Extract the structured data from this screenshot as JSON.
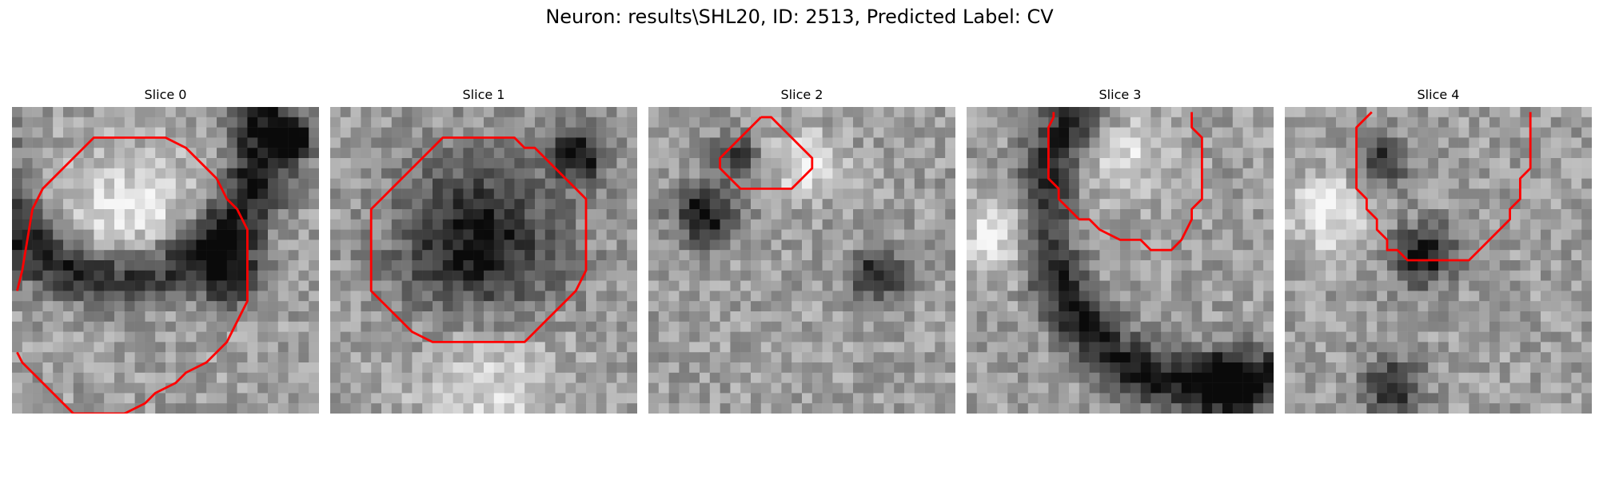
{
  "figure": {
    "suptitle": "Neuron: results\\SHL20, ID: 2513, Predicted Label: CV",
    "contour_color": "#ff0000",
    "colormap": "gray",
    "panels": [
      {
        "title": "Slice 0",
        "dark_features": [
          {
            "cx": 10,
            "cy": 2,
            "r": 14,
            "w": 3.2,
            "s": 0.55
          },
          {
            "cx": 27,
            "cy": 3,
            "r": 0,
            "w": 1.6,
            "s": 0.9
          },
          {
            "cx": 21,
            "cy": 16,
            "r": 0,
            "w": 3.0,
            "s": 0.5
          }
        ],
        "bright_features": [
          {
            "cx": 11,
            "cy": 11,
            "r": 0,
            "w": 7,
            "s": 0.3
          }
        ],
        "contour": [
          [
            0.5,
            18
          ],
          [
            1,
            16
          ],
          [
            2,
            10
          ],
          [
            3,
            8
          ],
          [
            5,
            6
          ],
          [
            8,
            3
          ],
          [
            15,
            3
          ],
          [
            17,
            4
          ],
          [
            20,
            7
          ],
          [
            21,
            9
          ],
          [
            22,
            10
          ],
          [
            23,
            12
          ],
          [
            23,
            19
          ],
          [
            22,
            21
          ],
          [
            21,
            23
          ],
          [
            19,
            25
          ],
          [
            17,
            26
          ],
          [
            16,
            27
          ],
          [
            14,
            28
          ],
          [
            13,
            29
          ],
          [
            11,
            30
          ],
          [
            6,
            30
          ],
          [
            5,
            29
          ],
          [
            4,
            28
          ],
          [
            2,
            26
          ],
          [
            1,
            25
          ],
          [
            0.5,
            24
          ]
        ]
      },
      {
        "title": "Slice 1",
        "dark_features": [
          {
            "cx": 14,
            "cy": 13,
            "r": 0,
            "w": 8,
            "s": 0.55
          },
          {
            "cx": 24,
            "cy": 4,
            "r": 0,
            "w": 3,
            "s": 0.5
          }
        ],
        "bright_features": [
          {
            "cx": 15,
            "cy": 26,
            "r": 0,
            "w": 7,
            "s": 0.25
          }
        ],
        "contour": [
          [
            6,
            8
          ],
          [
            9,
            5
          ],
          [
            10,
            4
          ],
          [
            11,
            3
          ],
          [
            18,
            3
          ],
          [
            19,
            4
          ],
          [
            20,
            4
          ],
          [
            21,
            5
          ],
          [
            23,
            7
          ],
          [
            24,
            8
          ],
          [
            25,
            9
          ],
          [
            25,
            16
          ],
          [
            24,
            18
          ],
          [
            23,
            19
          ],
          [
            22,
            20
          ],
          [
            21,
            21
          ],
          [
            20,
            22
          ],
          [
            19,
            23
          ],
          [
            10,
            23
          ],
          [
            8,
            22
          ],
          [
            7,
            21
          ],
          [
            6,
            20
          ],
          [
            5,
            19
          ],
          [
            4,
            18
          ],
          [
            4,
            10
          ],
          [
            5,
            9
          ],
          [
            6,
            8
          ]
        ]
      },
      {
        "title": "Slice 2",
        "dark_features": [
          {
            "cx": 5,
            "cy": 10,
            "r": 0,
            "w": 3,
            "s": 0.55
          },
          {
            "cx": 22,
            "cy": 16,
            "r": 0,
            "w": 2.6,
            "s": 0.5
          },
          {
            "cx": 8,
            "cy": 4,
            "r": 0,
            "w": 2,
            "s": 0.4
          }
        ],
        "bright_features": [
          {
            "cx": 15,
            "cy": 5,
            "r": 0,
            "w": 3,
            "s": 0.35
          }
        ],
        "contour": [
          [
            11,
            1
          ],
          [
            12,
            1
          ],
          [
            13,
            2
          ],
          [
            14,
            3
          ],
          [
            15,
            4
          ],
          [
            16,
            5
          ],
          [
            16,
            6
          ],
          [
            15,
            7
          ],
          [
            14,
            8
          ],
          [
            9,
            8
          ],
          [
            8,
            7
          ],
          [
            7,
            6
          ],
          [
            7,
            5
          ],
          [
            8,
            4
          ],
          [
            9,
            3
          ],
          [
            10,
            2
          ],
          [
            11,
            1
          ]
        ]
      },
      {
        "title": "Slice 3",
        "dark_features": [
          {
            "cx": 24,
            "cy": 10,
            "r": 17,
            "w": 2.8,
            "s": 0.5
          },
          {
            "cx": 25,
            "cy": 26,
            "r": 0,
            "w": 3,
            "s": 0.45
          }
        ],
        "bright_features": [
          {
            "cx": 3,
            "cy": 12,
            "r": 0,
            "w": 4,
            "s": 0.3
          },
          {
            "cx": 15,
            "cy": 4,
            "r": 0,
            "w": 4,
            "s": 0.25
          }
        ],
        "contour": [
          [
            8.5,
            0.5
          ],
          [
            8.5,
            1
          ],
          [
            8,
            2
          ],
          [
            8,
            7
          ],
          [
            9,
            8
          ],
          [
            9,
            9
          ],
          [
            10,
            10
          ],
          [
            11,
            11
          ],
          [
            12,
            11
          ],
          [
            13,
            12
          ],
          [
            15,
            13
          ],
          [
            17,
            13
          ],
          [
            18,
            14
          ],
          [
            20,
            14
          ],
          [
            21,
            13
          ],
          [
            22,
            11
          ],
          [
            22,
            10
          ],
          [
            23,
            9
          ],
          [
            23,
            3
          ],
          [
            22,
            2
          ],
          [
            22,
            0.5
          ]
        ]
      },
      {
        "title": "Slice 4",
        "dark_features": [
          {
            "cx": 13,
            "cy": 14,
            "r": 0,
            "w": 3,
            "s": 0.55
          },
          {
            "cx": 9,
            "cy": 5,
            "r": 0,
            "w": 2.5,
            "s": 0.45
          },
          {
            "cx": 10,
            "cy": 27,
            "r": 0,
            "w": 3,
            "s": 0.45
          }
        ],
        "bright_features": [
          {
            "cx": 4,
            "cy": 10,
            "r": 0,
            "w": 4,
            "s": 0.3
          }
        ],
        "contour": [
          [
            8.5,
            0.5
          ],
          [
            8,
            1
          ],
          [
            7,
            2
          ],
          [
            7,
            8
          ],
          [
            8,
            9
          ],
          [
            8,
            10
          ],
          [
            9,
            11
          ],
          [
            9,
            12
          ],
          [
            10,
            13
          ],
          [
            10,
            14
          ],
          [
            11,
            14
          ],
          [
            12,
            15
          ],
          [
            18,
            15
          ],
          [
            22,
            11
          ],
          [
            22,
            10
          ],
          [
            23,
            9
          ],
          [
            23,
            7
          ],
          [
            24,
            6
          ],
          [
            24,
            0.5
          ]
        ]
      }
    ]
  }
}
